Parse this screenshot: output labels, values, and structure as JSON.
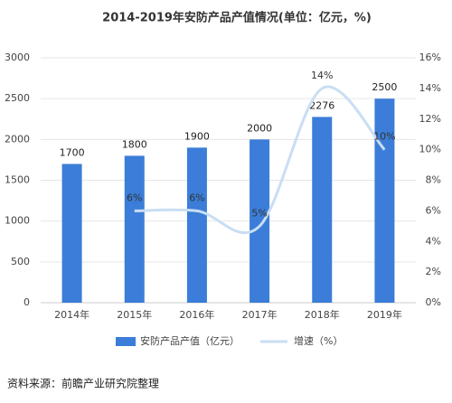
{
  "chart_data": {
    "type": "bar_line",
    "title": "2014-2019年安防产品产值情况(单位：亿元，%)",
    "categories": [
      "2014年",
      "2015年",
      "2016年",
      "2017年",
      "2018年",
      "2019年"
    ],
    "series": [
      {
        "name": "安防产品产值（亿元）",
        "color": "#3b7dd8",
        "type": "bar",
        "values": [
          1700,
          1800,
          1900,
          2000,
          2276,
          2500
        ]
      },
      {
        "name": "增速（%）",
        "color": "#c9def3",
        "type": "line",
        "axis": "y2",
        "values": [
          null,
          6,
          6,
          5,
          14,
          10
        ],
        "value_labels": [
          null,
          "6%",
          "6%",
          "5%",
          "14%",
          "10%"
        ]
      }
    ],
    "ylim": [
      0,
      3000
    ],
    "yticks": [
      0,
      500,
      1000,
      1500,
      2000,
      2500,
      3000
    ],
    "y2lim": [
      0,
      16
    ],
    "y2ticks": [
      {
        "value": 0,
        "label": "0%"
      },
      {
        "value": 2,
        "label": "2%"
      },
      {
        "value": 4,
        "label": "4%"
      },
      {
        "value": 6,
        "label": "6%"
      },
      {
        "value": 8,
        "label": "8%"
      },
      {
        "value": 10,
        "label": "10%"
      },
      {
        "value": 12,
        "label": "12%"
      },
      {
        "value": 14,
        "label": "14%"
      },
      {
        "value": 16,
        "label": "16%"
      }
    ],
    "legend": "bottom",
    "source": "资料来源：前瞻产业研究院整理"
  }
}
